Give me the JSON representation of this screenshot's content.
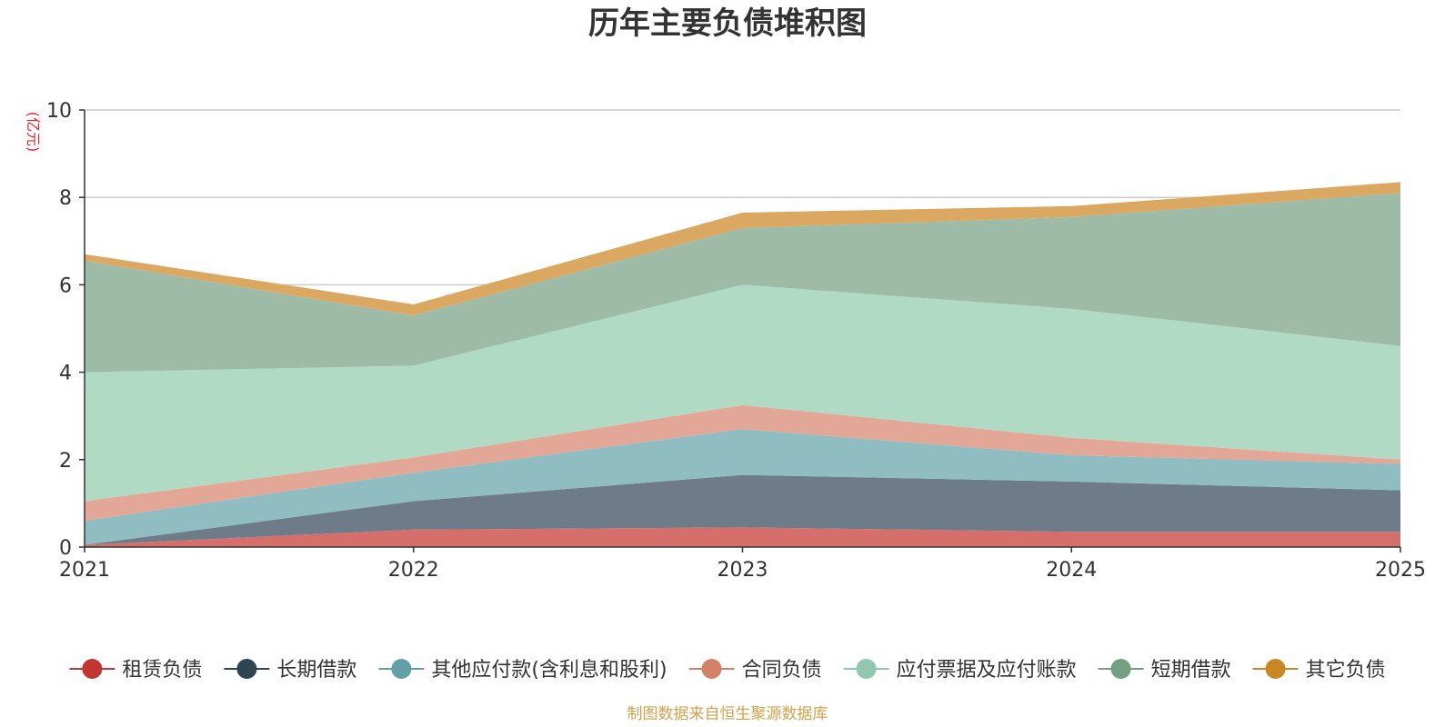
{
  "chart_data": {
    "type": "area",
    "stacked": true,
    "title": "历年主要负债堆积图",
    "unit_label": "(亿元)",
    "x": [
      "2021",
      "2022",
      "2023",
      "2024",
      "2025"
    ],
    "ylim": [
      0,
      10
    ],
    "yticks": [
      "0",
      "2",
      "4",
      "6",
      "8",
      "10"
    ],
    "grid": true,
    "legend_position": "bottom",
    "series": [
      {
        "name": "租赁负债",
        "color": "#c23531",
        "fill": "#d66f6b",
        "values": [
          0.05,
          0.4,
          0.45,
          0.35,
          0.35
        ]
      },
      {
        "name": "长期借款",
        "color": "#2f4554",
        "fill": "#6d7c88",
        "values": [
          0.0,
          0.65,
          1.2,
          1.15,
          0.95
        ]
      },
      {
        "name": "其他应付款(含利息和股利)",
        "color": "#61a0a8",
        "fill": "#90bdc2",
        "values": [
          0.55,
          0.65,
          1.05,
          0.6,
          0.6
        ]
      },
      {
        "name": "合同负债",
        "color": "#d48265",
        "fill": "#e3a797",
        "values": [
          0.45,
          0.35,
          0.55,
          0.4,
          0.1
        ]
      },
      {
        "name": "应付票据及应付账款",
        "color": "#91c7ae",
        "fill": "#b1dac5",
        "values": [
          2.95,
          2.1,
          2.75,
          2.95,
          2.6
        ]
      },
      {
        "name": "短期借款",
        "color": "#749f83",
        "fill": "#9ebba7",
        "values": [
          2.55,
          1.15,
          1.3,
          2.1,
          3.5
        ]
      },
      {
        "name": "其它负债",
        "color": "#ca8622",
        "fill": "#dba862",
        "values": [
          0.15,
          0.25,
          0.35,
          0.25,
          0.25
        ]
      }
    ]
  },
  "footer": {
    "source": "制图数据来自恒生聚源数据库"
  }
}
